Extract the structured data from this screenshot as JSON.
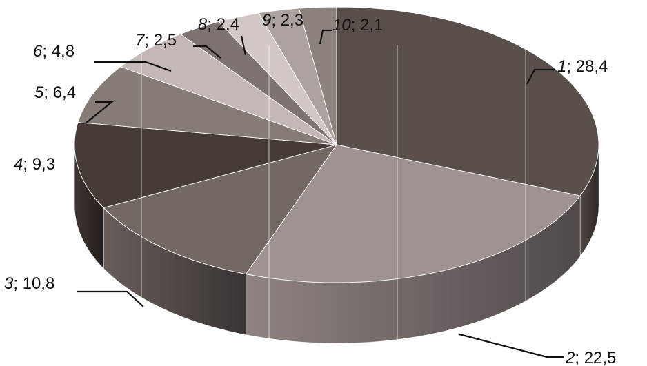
{
  "chart_data": {
    "type": "pie",
    "style": "3d",
    "title": "",
    "categories": [
      "1",
      "2",
      "3",
      "4",
      "5",
      "6",
      "7",
      "8",
      "9",
      "10"
    ],
    "values": [
      28.4,
      22.5,
      10.8,
      9.3,
      6.4,
      4.8,
      2.5,
      2.4,
      2.3,
      2.1
    ],
    "value_labels": [
      "28,4",
      "22,5",
      "10,8",
      "9,3",
      "6,4",
      "4,8",
      "2,5",
      "2,4",
      "2,3",
      "2,1"
    ],
    "data_labels": true,
    "legend": "none",
    "grid": false,
    "colors": [
      "#5a504b",
      "#9e9390",
      "#726864",
      "#453b37",
      "#857b77",
      "#c3b8b5",
      "#7d7370",
      "#d2c8c5",
      "#aca3a0",
      "#8c837f"
    ]
  }
}
